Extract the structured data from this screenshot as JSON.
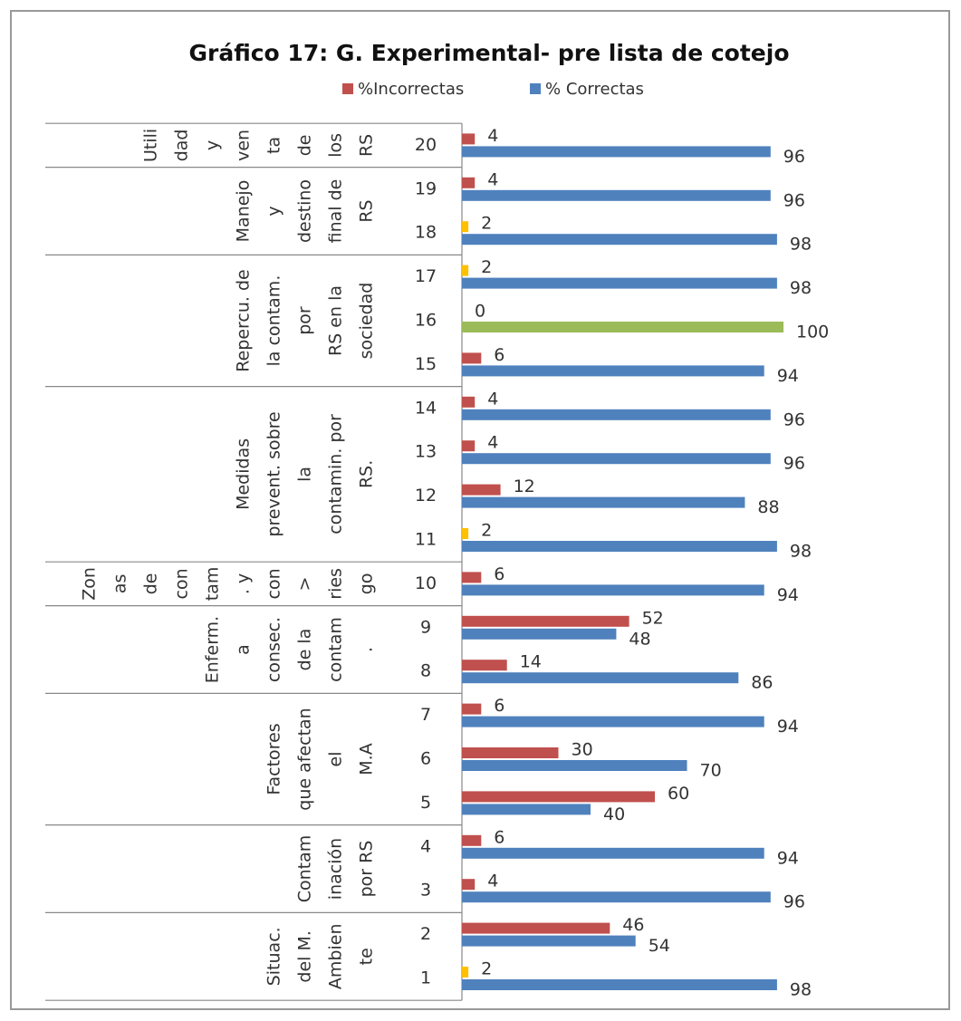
{
  "chart_data": {
    "type": "hbar",
    "title": "Gráfico 17: G. Experimental- pre lista de cotejo",
    "categories": [
      "1",
      "2",
      "3",
      "4",
      "5",
      "6",
      "7",
      "8",
      "9",
      "10",
      "11",
      "12",
      "13",
      "14",
      "15",
      "16",
      "17",
      "18",
      "19",
      "20"
    ],
    "groups": [
      {
        "lines": [
          "Situac.",
          "del M.",
          "Ambien",
          "te"
        ],
        "count": 2
      },
      {
        "lines": [
          "Contam",
          "inación",
          "por RS"
        ],
        "count": 2
      },
      {
        "lines": [
          "Factores",
          "que afectan",
          "el",
          "M.A"
        ],
        "count": 3
      },
      {
        "lines": [
          "Enferm.",
          "a",
          "consec.",
          "de la",
          "contam",
          "."
        ],
        "count": 2
      },
      {
        "lines": [
          "Zon",
          "as",
          "de",
          "con",
          "tam",
          ". y",
          "con",
          ">",
          "ries",
          "go"
        ],
        "count": 1
      },
      {
        "lines": [
          "Medidas",
          "prevent. sobre",
          "la",
          "contamin. por",
          "RS."
        ],
        "count": 4
      },
      {
        "lines": [
          "Repercu. de",
          "la contam.",
          "por",
          "RS en la",
          "sociedad"
        ],
        "count": 3
      },
      {
        "lines": [
          "Manejo",
          "y",
          "destino",
          "final de",
          "RS"
        ],
        "count": 2
      },
      {
        "lines": [
          "Utili",
          "dad",
          "y",
          "ven",
          "ta",
          "de",
          "los",
          "RS"
        ],
        "count": 1
      }
    ],
    "xlim": [
      0,
      100
    ],
    "series": [
      {
        "name": "%Incorrectas",
        "color": "#c0504d",
        "values": [
          2,
          46,
          4,
          6,
          60,
          30,
          6,
          14,
          52,
          6,
          2,
          12,
          4,
          4,
          6,
          0,
          2,
          2,
          4,
          4
        ],
        "colors": [
          "#ffc000",
          "#c0504d",
          "#c0504d",
          "#c0504d",
          "#c0504d",
          "#c0504d",
          "#c0504d",
          "#c0504d",
          "#c0504d",
          "#c0504d",
          "#ffc000",
          "#c0504d",
          "#c0504d",
          "#c0504d",
          "#c0504d",
          "#c0504d",
          "#ffc000",
          "#ffc000",
          "#c0504d",
          "#c0504d"
        ]
      },
      {
        "name": "% Correctas",
        "color": "#4f81bd",
        "values": [
          98,
          54,
          96,
          94,
          40,
          70,
          94,
          86,
          48,
          94,
          98,
          88,
          96,
          96,
          94,
          100,
          98,
          98,
          96,
          96
        ],
        "colors": [
          "#4f81bd",
          "#4f81bd",
          "#4f81bd",
          "#4f81bd",
          "#4f81bd",
          "#4f81bd",
          "#4f81bd",
          "#4f81bd",
          "#4f81bd",
          "#4f81bd",
          "#4f81bd",
          "#4f81bd",
          "#4f81bd",
          "#4f81bd",
          "#4f81bd",
          "#9bbb59",
          "#4f81bd",
          "#4f81bd",
          "#4f81bd",
          "#4f81bd"
        ]
      }
    ]
  }
}
